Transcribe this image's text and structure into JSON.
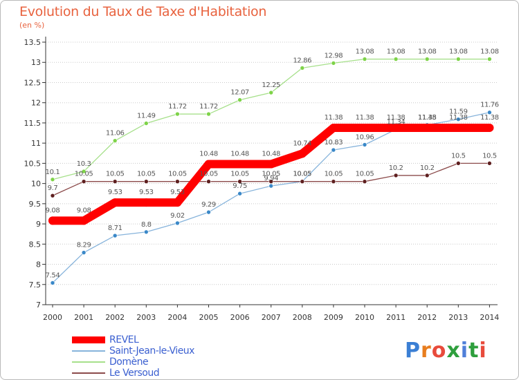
{
  "header": {
    "title": "Evolution du Taux de Taxe d'Habitation",
    "unit": "(en %)"
  },
  "brand": {
    "logo_text": "Proxiti",
    "letter_colors": [
      "#3b7fd4",
      "#e87d1e",
      "#e84b3c",
      "#2e9f3d",
      "#4f7fd9",
      "#2e9f3d",
      "#e84b3c"
    ]
  },
  "chart_data": {
    "type": "line",
    "title": "Evolution du Taux de Taxe d'Habitation",
    "ylabel": "(en %)",
    "x": [
      "2000",
      "2001",
      "2002",
      "2003",
      "2004",
      "2005",
      "2006",
      "2007",
      "2008",
      "2009",
      "2010",
      "2011",
      "2012",
      "2013",
      "2014"
    ],
    "ylim": [
      7,
      13.5
    ],
    "yticks": [
      "7",
      "7.5",
      "8",
      "8.5",
      "9",
      "9.5",
      "10",
      "10.5",
      "11",
      "11.5",
      "12",
      "12.5",
      "13",
      "13.5"
    ],
    "grid": "dotted-horizontal",
    "legend_position": "bottom-left",
    "series": [
      {
        "name": "REVEL",
        "color": "#ff0000",
        "marker_color": "#ff0000",
        "thick": true,
        "values": [
          9.08,
          9.08,
          9.53,
          9.53,
          9.53,
          10.48,
          10.48,
          10.48,
          10.74,
          11.38,
          11.38,
          11.38,
          11.38,
          11.38,
          11.38
        ],
        "labels": [
          "9.08",
          "9.08",
          "9.53",
          "9.53",
          "9.53",
          "10.48",
          "10.48",
          "10.48",
          "10.74",
          "11.38",
          "11.38",
          "11.38",
          "11.38",
          "11.38",
          "11.38"
        ]
      },
      {
        "name": "Saint-Jean-le-Vieux",
        "color": "#86b3db",
        "marker_color": "#3a88c8",
        "thick": false,
        "values": [
          7.54,
          8.29,
          8.71,
          8.8,
          9.02,
          9.29,
          9.75,
          9.94,
          10.05,
          10.83,
          10.96,
          11.34,
          11.45,
          11.59,
          11.76
        ],
        "labels": [
          "7.54",
          "8.29",
          "8.71",
          "8.8",
          "9.02",
          "9.29",
          "9.75",
          "9.94",
          "10.05",
          "10.83",
          "10.96",
          "11.34",
          "11.45",
          "11.59",
          "11.76"
        ]
      },
      {
        "name": "Domène",
        "color": "#a6e08a",
        "marker_color": "#7ed348",
        "thick": false,
        "values": [
          10.1,
          10.3,
          11.06,
          11.49,
          11.72,
          11.72,
          12.07,
          12.25,
          12.86,
          12.98,
          13.08,
          13.08,
          13.08,
          13.08,
          13.08
        ],
        "labels": [
          "10.1",
          "10.3",
          "11.06",
          "11.49",
          "11.72",
          "11.72",
          "12.07",
          "12.25",
          "12.86",
          "12.98",
          "13.08",
          "13.08",
          "13.08",
          "13.08",
          "13.08"
        ]
      },
      {
        "name": "Le Versoud",
        "color": "#8b4a4a",
        "marker_color": "#5e1f1f",
        "thick": false,
        "values": [
          9.7,
          10.05,
          10.05,
          10.05,
          10.05,
          10.05,
          10.05,
          10.05,
          10.05,
          10.05,
          10.05,
          10.2,
          10.2,
          10.5,
          10.5
        ],
        "labels": [
          "9.7",
          "10.05",
          "10.05",
          "10.05",
          "10.05",
          "10.05",
          "10.05",
          "10.05",
          "10.05",
          "10.05",
          "10.05",
          "10.2",
          "10.2",
          "10.5",
          "10.5"
        ]
      }
    ]
  }
}
